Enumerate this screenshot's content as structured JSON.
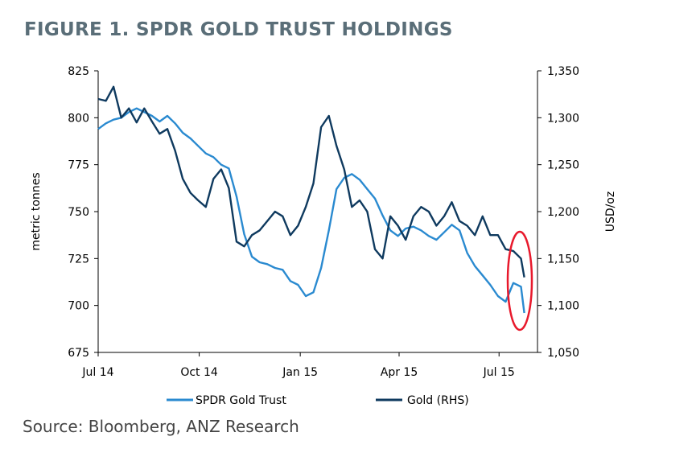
{
  "figure": {
    "title": "FIGURE 1. SPDR GOLD TRUST HOLDINGS",
    "source": "Source: Bloomberg, ANZ Research"
  },
  "chart_data": {
    "type": "line",
    "ylabel": "metric tonnes",
    "y2label": "USD/oz",
    "ylim": [
      675,
      825
    ],
    "y2lim": [
      1050,
      1350
    ],
    "y_ticks": [
      "675",
      "700",
      "725",
      "750",
      "775",
      "800",
      "825"
    ],
    "y2_ticks": [
      "1,050",
      "1,100",
      "1,150",
      "1,200",
      "1,250",
      "1,300",
      "1,350"
    ],
    "x_ticks": [
      "Jul 14",
      "Oct 14",
      "Jan 15",
      "Apr 15",
      "Jul 15"
    ],
    "x_domain": [
      "2014-07-01",
      "2015-08-05"
    ],
    "legend": "bottom",
    "grid": false,
    "annotation": "red circle around late-July 2015 decline",
    "series": [
      {
        "name": "SPDR Gold Trust",
        "axis": "left",
        "color": "#2a8ad0",
        "x": [
          "2014-07-01",
          "2014-07-08",
          "2014-07-15",
          "2014-07-22",
          "2014-07-29",
          "2014-08-05",
          "2014-08-12",
          "2014-08-19",
          "2014-08-26",
          "2014-09-02",
          "2014-09-09",
          "2014-09-16",
          "2014-09-23",
          "2014-09-30",
          "2014-10-07",
          "2014-10-14",
          "2014-10-21",
          "2014-10-28",
          "2014-11-04",
          "2014-11-11",
          "2014-11-18",
          "2014-11-25",
          "2014-12-02",
          "2014-12-09",
          "2014-12-16",
          "2014-12-23",
          "2014-12-30",
          "2015-01-06",
          "2015-01-13",
          "2015-01-20",
          "2015-01-27",
          "2015-02-03",
          "2015-02-10",
          "2015-02-17",
          "2015-02-24",
          "2015-03-03",
          "2015-03-10",
          "2015-03-17",
          "2015-03-24",
          "2015-03-31",
          "2015-04-07",
          "2015-04-14",
          "2015-04-21",
          "2015-04-28",
          "2015-05-05",
          "2015-05-12",
          "2015-05-19",
          "2015-05-26",
          "2015-06-02",
          "2015-06-09",
          "2015-06-16",
          "2015-06-23",
          "2015-06-30",
          "2015-07-07",
          "2015-07-14",
          "2015-07-21",
          "2015-07-24"
        ],
        "values": [
          794,
          797,
          799,
          800,
          803,
          805,
          803,
          801,
          798,
          801,
          797,
          792,
          789,
          785,
          781,
          779,
          775,
          773,
          758,
          738,
          726,
          723,
          722,
          720,
          719,
          713,
          711,
          705,
          707,
          720,
          740,
          762,
          768,
          770,
          767,
          762,
          757,
          748,
          740,
          737,
          741,
          742,
          740,
          737,
          735,
          739,
          743,
          740,
          728,
          721,
          716,
          711,
          705,
          702,
          712,
          710,
          696
        ]
      },
      {
        "name": "Gold (RHS)",
        "axis": "right",
        "color": "#0f3a5f",
        "x": [
          "2014-07-01",
          "2014-07-08",
          "2014-07-15",
          "2014-07-22",
          "2014-07-29",
          "2014-08-05",
          "2014-08-12",
          "2014-08-19",
          "2014-08-26",
          "2014-09-02",
          "2014-09-09",
          "2014-09-16",
          "2014-09-23",
          "2014-09-30",
          "2014-10-07",
          "2014-10-14",
          "2014-10-21",
          "2014-10-28",
          "2014-11-04",
          "2014-11-11",
          "2014-11-18",
          "2014-11-25",
          "2014-12-02",
          "2014-12-09",
          "2014-12-16",
          "2014-12-23",
          "2014-12-30",
          "2015-01-06",
          "2015-01-13",
          "2015-01-20",
          "2015-01-27",
          "2015-02-03",
          "2015-02-10",
          "2015-02-17",
          "2015-02-24",
          "2015-03-03",
          "2015-03-10",
          "2015-03-17",
          "2015-03-24",
          "2015-03-31",
          "2015-04-07",
          "2015-04-14",
          "2015-04-21",
          "2015-04-28",
          "2015-05-05",
          "2015-05-12",
          "2015-05-19",
          "2015-05-26",
          "2015-06-02",
          "2015-06-09",
          "2015-06-16",
          "2015-06-23",
          "2015-06-30",
          "2015-07-07",
          "2015-07-14",
          "2015-07-21",
          "2015-07-24"
        ],
        "values": [
          1320,
          1318,
          1333,
          1300,
          1310,
          1295,
          1310,
          1296,
          1283,
          1288,
          1265,
          1235,
          1220,
          1212,
          1205,
          1235,
          1245,
          1225,
          1168,
          1163,
          1175,
          1180,
          1190,
          1200,
          1195,
          1175,
          1185,
          1205,
          1230,
          1290,
          1302,
          1270,
          1245,
          1205,
          1212,
          1200,
          1160,
          1150,
          1195,
          1185,
          1170,
          1195,
          1205,
          1200,
          1185,
          1195,
          1210,
          1190,
          1185,
          1175,
          1195,
          1175,
          1175,
          1160,
          1158,
          1150,
          1130
        ]
      }
    ]
  },
  "legend": {
    "item1": "SPDR Gold Trust",
    "item2": "Gold (RHS)"
  }
}
